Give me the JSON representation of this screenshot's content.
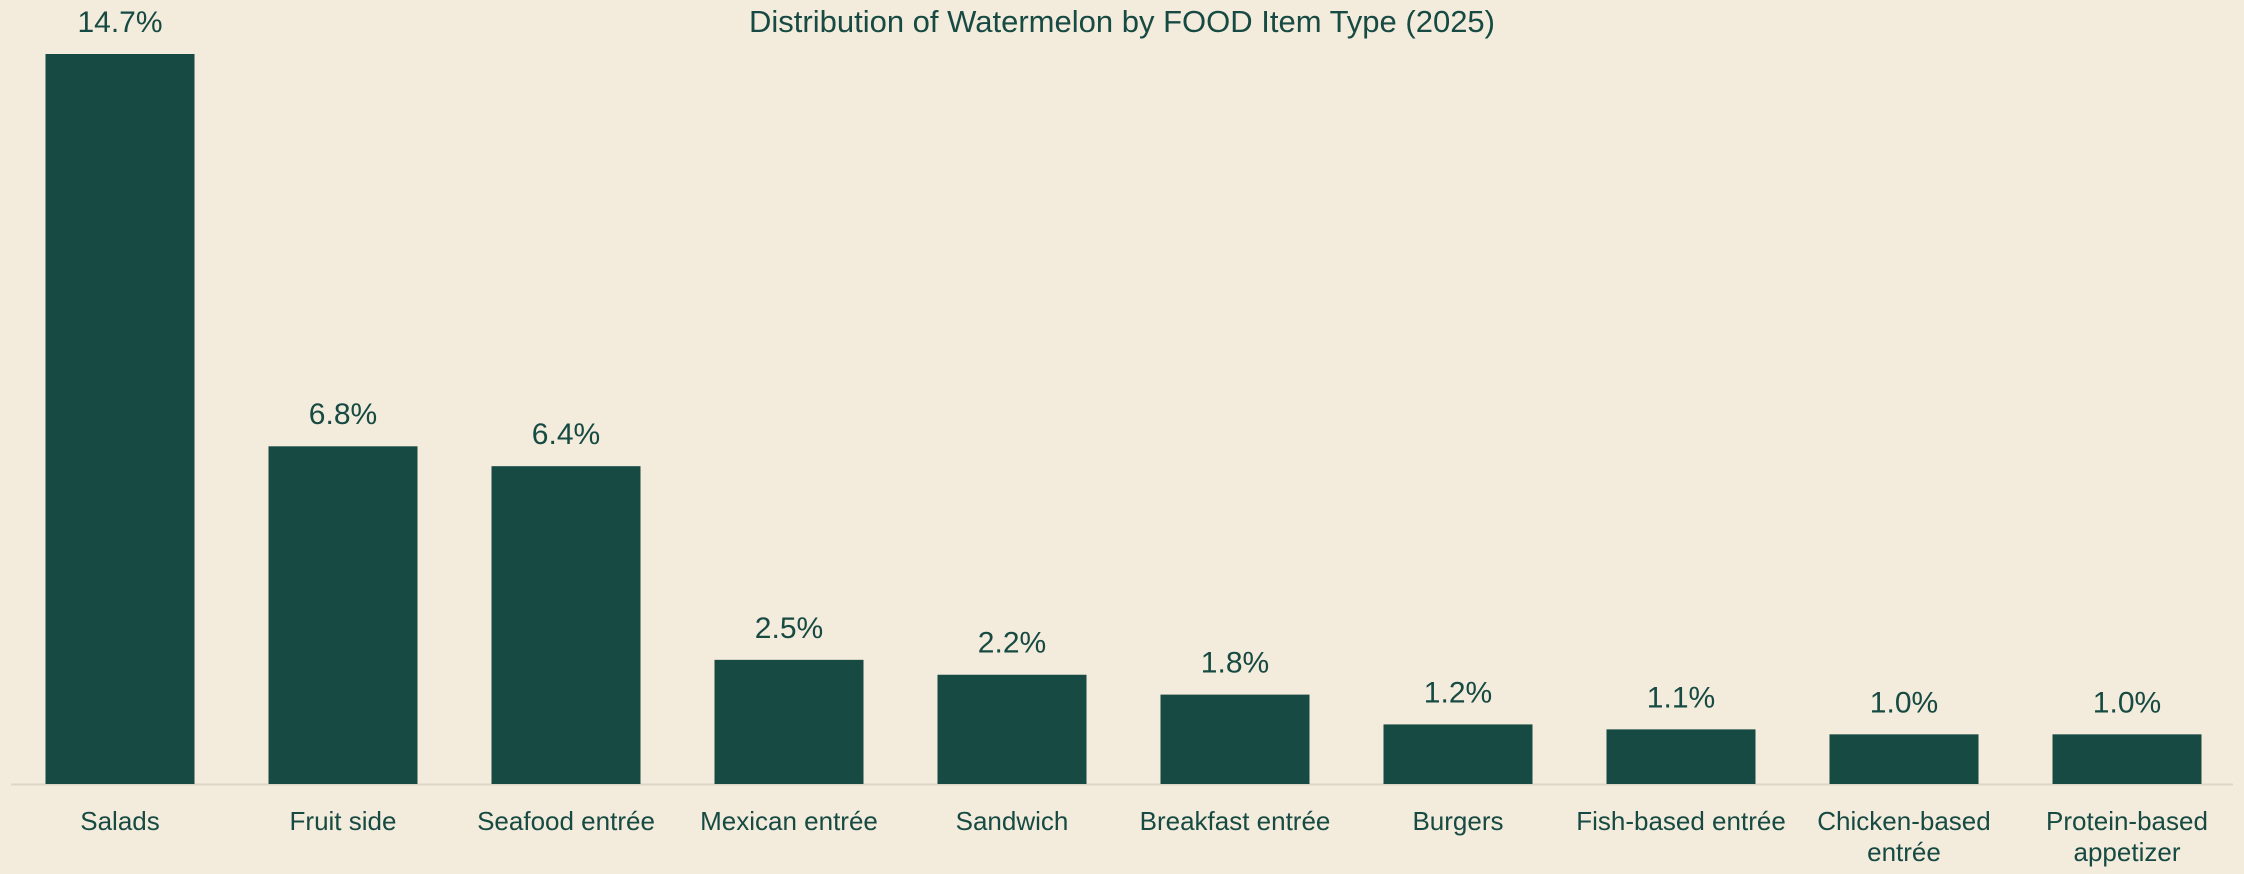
{
  "chart_data": {
    "type": "bar",
    "title": "Distribution of Watermelon by FOOD Item Type (2025)",
    "categories": [
      "Salads",
      "Fruit side",
      "Seafood entrée",
      "Mexican entrée",
      "Sandwich",
      "Breakfast entrée",
      "Burgers",
      "Fish-based entrée",
      "Chicken-based entrée",
      "Protein-based appetizer"
    ],
    "values": [
      14.7,
      6.8,
      6.4,
      2.5,
      2.2,
      1.8,
      1.2,
      1.1,
      1.0,
      1.0
    ],
    "value_labels": [
      "14.7%",
      "6.8%",
      "6.4%",
      "2.5%",
      "2.2%",
      "1.8%",
      "1.2%",
      "1.1%",
      "1.0%",
      "1.0%"
    ],
    "color": "#164a42"
  }
}
